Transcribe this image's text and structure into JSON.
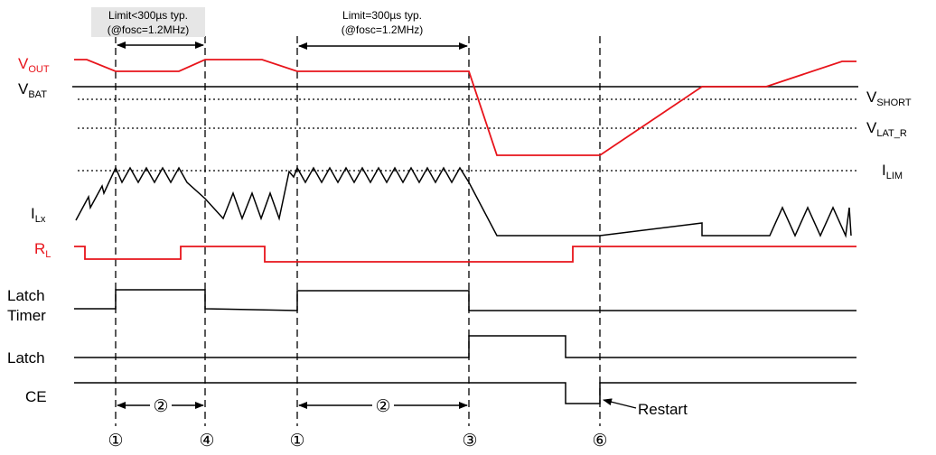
{
  "colors": {
    "signal_red": "#e8141b",
    "signal_black": "#000000",
    "note_bg": "#e6e6e6"
  },
  "signals": {
    "vout": {
      "main": "V",
      "sub": "OUT"
    },
    "vbat": {
      "main": "V",
      "sub": "BAT"
    },
    "vshort": {
      "main": "V",
      "sub": "SHORT"
    },
    "vlat_r": {
      "main": "V",
      "sub": "LAT_R"
    },
    "ilim": {
      "main": "I",
      "sub": "LIM"
    },
    "ilx": {
      "main": "I",
      "sub": "Lx"
    },
    "rl": {
      "main": "R",
      "sub": "L"
    },
    "latch_timer": {
      "line1": "Latch",
      "line2": "Timer"
    },
    "latch": "Latch",
    "ce": "CE"
  },
  "annotations": {
    "limit_left": {
      "line1": "Limit<300µs typ.",
      "line2": "(@fosc=1.2MHz)"
    },
    "limit_right": {
      "line1": "Limit=300µs typ.",
      "line2": "(@fosc=1.2MHz)"
    },
    "interval_label": "②",
    "restart": "Restart"
  },
  "markers": [
    "①",
    "④",
    "①",
    "③",
    "⑥"
  ]
}
